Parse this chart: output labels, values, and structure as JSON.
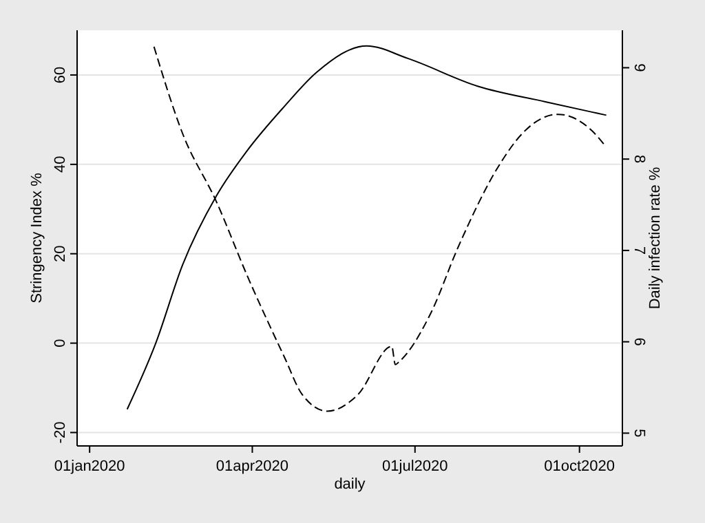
{
  "chart_data": {
    "type": "line",
    "xlabel": "daily",
    "ylabel": "Stringency Index %",
    "y2label": "Daily infection rate %",
    "xlim": [
      "2019-12-25",
      "2020-10-25"
    ],
    "xticks": [
      {
        "value": "2020-01-01",
        "label": "01jan2020"
      },
      {
        "value": "2020-04-01",
        "label": "01apr2020"
      },
      {
        "value": "2020-07-01",
        "label": "01jul2020"
      },
      {
        "value": "2020-10-01",
        "label": "01oct2020"
      }
    ],
    "ylim": [
      -23,
      70
    ],
    "yticks": [
      -20,
      0,
      20,
      40,
      60
    ],
    "y2lim": [
      4.86,
      9.41
    ],
    "y2ticks": [
      5,
      6,
      7,
      8,
      9
    ],
    "grid": "y",
    "series": [
      {
        "color": "#000000",
        "line_style": "solid",
        "x": [
          "2020-01-22",
          "2020-02-07",
          "2020-02-22",
          "2020-03-12",
          "2020-03-29",
          "2020-04-19",
          "2020-05-07",
          "2020-06-04",
          "2020-06-27",
          "2020-08-05",
          "2020-09-12",
          "2020-10-08",
          "2020-10-16"
        ],
        "values": [
          -14.8,
          0,
          17.5,
          33,
          43,
          53,
          60.6,
          66.5,
          63.7,
          57.5,
          54,
          51.7,
          51
        ]
      },
      {
        "color": "#000000",
        "line_style": "dashed",
        "axis": "y2",
        "x": [
          "2020-02-06",
          "2020-02-22",
          "2020-03-12",
          "2020-03-29",
          "2020-04-19",
          "2020-04-29",
          "2020-05-13",
          "2020-05-30",
          "2020-06-18",
          "2020-06-20",
          "2020-06-22",
          "2020-07-10",
          "2020-07-25",
          "2020-08-17",
          "2020-08-30",
          "2020-09-19",
          "2020-10-08",
          "2020-10-16"
        ],
        "values": [
          9.23,
          8.28,
          7.53,
          6.73,
          5.83,
          5.42,
          5.24,
          5.42,
          5.95,
          5.75,
          5.78,
          6.32,
          7.03,
          7.93,
          8.28,
          8.49,
          8.31,
          8.13
        ]
      }
    ]
  }
}
